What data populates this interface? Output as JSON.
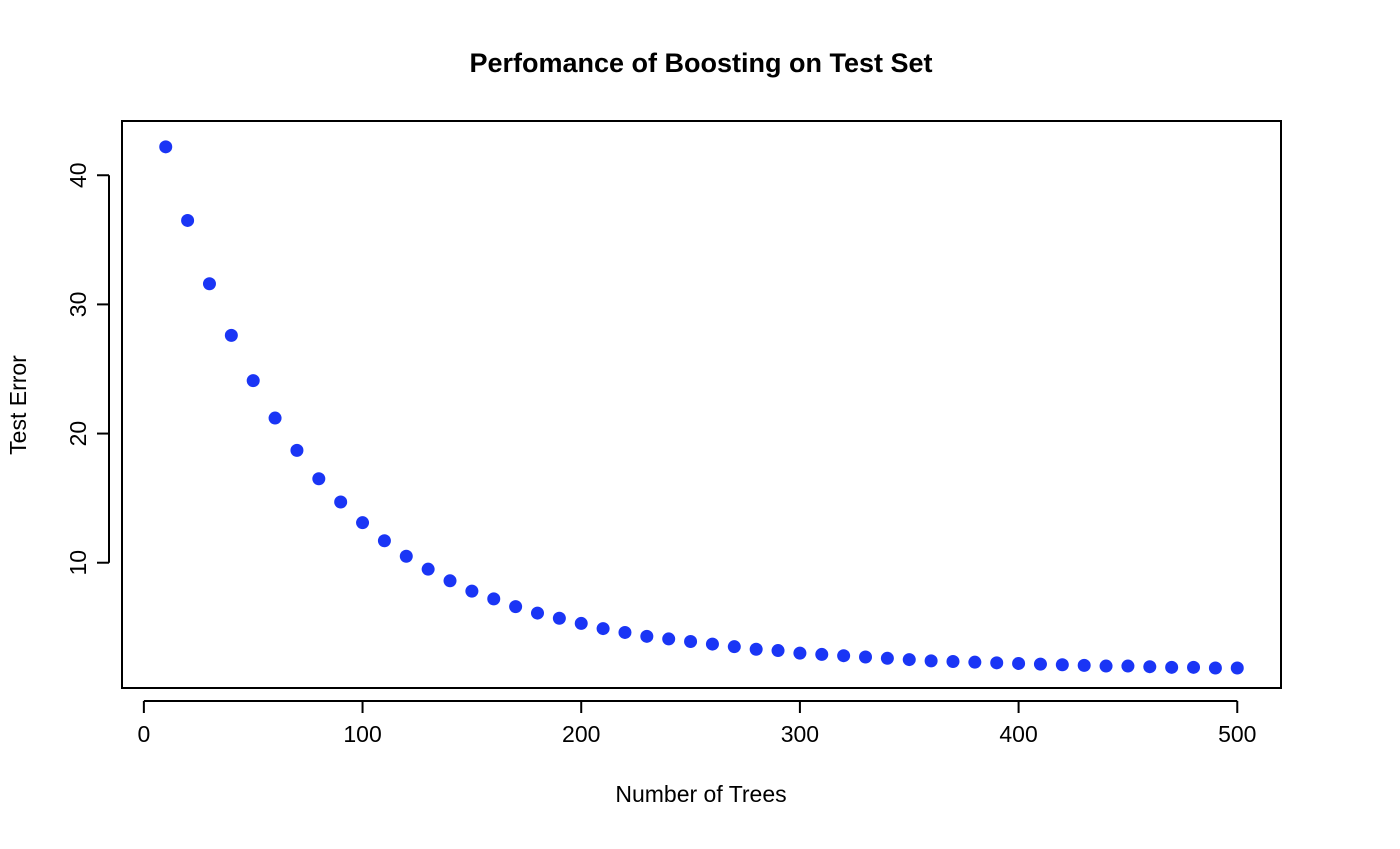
{
  "chart_data": {
    "type": "scatter",
    "title": "Perfomance of Boosting on Test Set",
    "xlabel": "Number of Trees",
    "ylabel": "Test Error",
    "xlim": [
      -10,
      520
    ],
    "ylim": [
      0.3,
      44.2
    ],
    "x_ticks": [
      0,
      100,
      200,
      300,
      400,
      500
    ],
    "y_ticks": [
      10,
      20,
      30,
      40
    ],
    "grid": false,
    "legend": "none",
    "marker_color": "#1a35f5",
    "series": [
      {
        "x": [
          10,
          20,
          30,
          40,
          50,
          60,
          70,
          80,
          90,
          100,
          110,
          120,
          130,
          140,
          150,
          160,
          170,
          180,
          190,
          200,
          210,
          220,
          230,
          240,
          250,
          260,
          270,
          280,
          290,
          300,
          310,
          320,
          330,
          340,
          350,
          360,
          370,
          380,
          390,
          400,
          410,
          420,
          430,
          440,
          450,
          460,
          470,
          480,
          490,
          500
        ],
        "y": [
          42.2,
          36.5,
          31.6,
          27.6,
          24.1,
          21.2,
          18.7,
          16.5,
          14.7,
          13.1,
          11.7,
          10.5,
          9.5,
          8.6,
          7.8,
          7.2,
          6.6,
          6.1,
          5.7,
          5.3,
          4.9,
          4.6,
          4.3,
          4.1,
          3.9,
          3.7,
          3.5,
          3.3,
          3.2,
          3.0,
          2.9,
          2.8,
          2.7,
          2.6,
          2.5,
          2.4,
          2.35,
          2.3,
          2.25,
          2.2,
          2.15,
          2.1,
          2.05,
          2.0,
          2.0,
          1.95,
          1.9,
          1.9,
          1.85,
          1.85
        ]
      }
    ]
  }
}
